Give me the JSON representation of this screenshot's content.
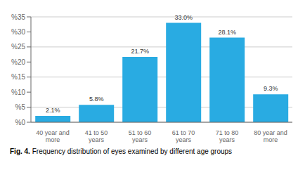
{
  "chart_data": {
    "type": "bar",
    "categories": [
      "40 year and\nmore",
      "41 to 50 years",
      "51 to 60 years",
      "61 to 70 years",
      "71 to 80 years",
      "80 year and more"
    ],
    "values": [
      2.1,
      5.8,
      21.7,
      33.0,
      28.1,
      9.3
    ],
    "value_labels": [
      "2.1%",
      "5.8%",
      "21.7%",
      "33.0%",
      "28.1%",
      "9.3%"
    ],
    "data_labels": true,
    "color": "#29ABE2",
    "ylim": [
      0,
      35
    ],
    "yticks": [
      {
        "value": 0,
        "label": "%0"
      },
      {
        "value": 5,
        "label": "%5"
      },
      {
        "value": 10,
        "label": "%10"
      },
      {
        "value": 15,
        "label": "%15"
      },
      {
        "value": 20,
        "label": "%20"
      },
      {
        "value": 25,
        "label": "%25"
      },
      {
        "value": 30,
        "label": "%30"
      },
      {
        "value": 35,
        "label": "%35"
      }
    ],
    "grid": true,
    "annotations": [
      "Fig. 4.",
      "Frequency distribution of eyes examined by different age groups"
    ]
  }
}
